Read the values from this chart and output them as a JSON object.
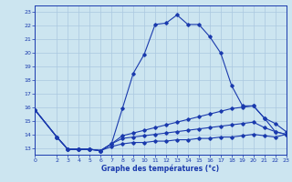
{
  "xlabel": "Graphe des températures (°c)",
  "bg_color": "#cce5f0",
  "line_color": "#1a3aad",
  "grid_color": "#aac8e0",
  "xlim": [
    0,
    23
  ],
  "ylim": [
    12.5,
    23.5
  ],
  "xticks": [
    0,
    2,
    3,
    4,
    5,
    6,
    7,
    8,
    9,
    10,
    11,
    12,
    13,
    14,
    15,
    16,
    17,
    18,
    19,
    20,
    21,
    22,
    23
  ],
  "yticks": [
    13,
    14,
    15,
    16,
    17,
    18,
    19,
    20,
    21,
    22,
    23
  ],
  "line1_x": [
    0,
    2,
    3,
    4,
    5,
    6,
    7,
    8,
    9,
    10,
    11,
    12,
    13,
    14,
    15,
    16,
    17,
    18,
    19,
    20,
    21,
    22,
    23
  ],
  "line1_y": [
    15.8,
    13.8,
    12.9,
    12.9,
    12.9,
    12.8,
    13.3,
    15.9,
    18.5,
    19.9,
    22.1,
    22.2,
    22.8,
    22.1,
    22.1,
    21.2,
    20.0,
    17.6,
    16.1,
    16.1,
    15.2,
    14.2,
    14.0
  ],
  "line2_x": [
    0,
    2,
    3,
    4,
    5,
    6,
    7,
    8,
    9,
    10,
    11,
    12,
    13,
    14,
    15,
    16,
    17,
    18,
    19,
    20,
    21,
    22,
    23
  ],
  "line2_y": [
    15.8,
    13.8,
    12.9,
    12.9,
    12.9,
    12.8,
    13.3,
    13.9,
    14.1,
    14.3,
    14.5,
    14.7,
    14.9,
    15.1,
    15.3,
    15.5,
    15.7,
    15.9,
    16.0,
    16.1,
    15.2,
    14.8,
    14.2
  ],
  "line3_x": [
    0,
    2,
    3,
    4,
    5,
    6,
    7,
    8,
    9,
    10,
    11,
    12,
    13,
    14,
    15,
    16,
    17,
    18,
    19,
    20,
    21,
    22,
    23
  ],
  "line3_y": [
    15.8,
    13.8,
    12.9,
    12.9,
    12.9,
    12.8,
    13.3,
    13.7,
    13.8,
    13.9,
    14.0,
    14.1,
    14.2,
    14.3,
    14.4,
    14.5,
    14.6,
    14.7,
    14.8,
    14.9,
    14.5,
    14.2,
    14.0
  ],
  "line4_x": [
    0,
    2,
    3,
    4,
    5,
    6,
    7,
    8,
    9,
    10,
    11,
    12,
    13,
    14,
    15,
    16,
    17,
    18,
    19,
    20,
    21,
    22,
    23
  ],
  "line4_y": [
    15.8,
    13.8,
    12.9,
    12.9,
    12.9,
    12.8,
    13.1,
    13.3,
    13.4,
    13.4,
    13.5,
    13.5,
    13.6,
    13.6,
    13.7,
    13.7,
    13.8,
    13.8,
    13.9,
    14.0,
    13.9,
    13.8,
    14.0
  ]
}
